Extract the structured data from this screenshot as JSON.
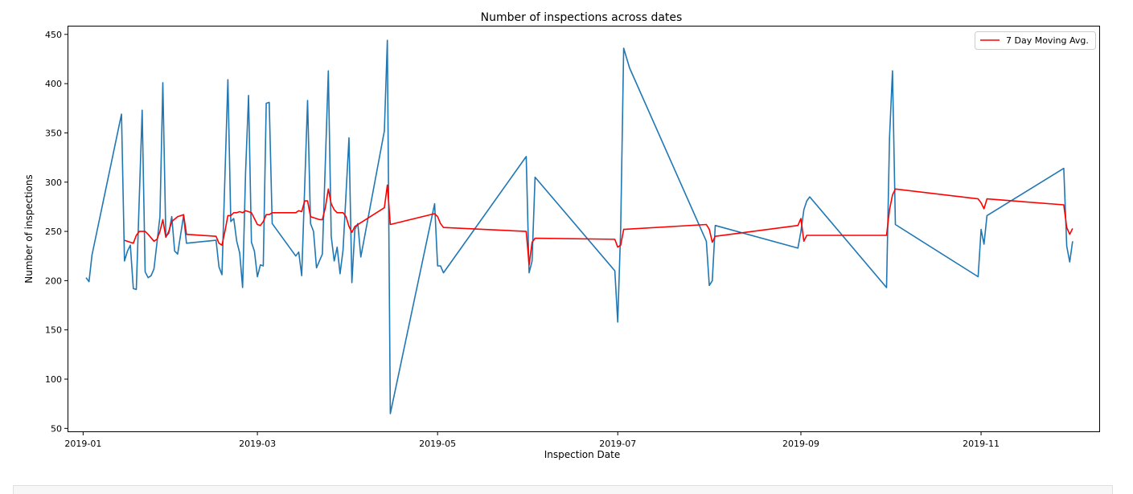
{
  "chart_data": {
    "type": "line",
    "title": "Number of inspections across dates",
    "xlabel": "Inspection Date",
    "ylabel": "Number of inspections",
    "xlim": [
      "2018-12-27",
      "2019-12-11"
    ],
    "ylim": [
      47,
      458
    ],
    "xticks": [
      "2019-01",
      "2019-03",
      "2019-05",
      "2019-07",
      "2019-09",
      "2019-11"
    ],
    "yticks": [
      50,
      100,
      150,
      200,
      250,
      300,
      350,
      400,
      450
    ],
    "legend_position": "top-right",
    "grid": false,
    "series": [
      {
        "color": "#1f77b4",
        "points": [
          [
            "2019-01-02",
            203
          ],
          [
            "2019-01-03",
            199
          ],
          [
            "2019-01-04",
            226
          ],
          [
            "2019-01-14",
            369
          ],
          [
            "2019-01-15",
            220
          ],
          [
            "2019-01-16",
            230
          ],
          [
            "2019-01-17",
            236
          ],
          [
            "2019-01-18",
            192
          ],
          [
            "2019-01-19",
            191
          ],
          [
            "2019-01-21",
            373
          ],
          [
            "2019-01-22",
            209
          ],
          [
            "2019-01-23",
            203
          ],
          [
            "2019-01-24",
            205
          ],
          [
            "2019-01-25",
            212
          ],
          [
            "2019-01-27",
            265
          ],
          [
            "2019-01-28",
            401
          ],
          [
            "2019-01-29",
            245
          ],
          [
            "2019-01-30",
            248
          ],
          [
            "2019-01-31",
            265
          ],
          [
            "2019-02-01",
            230
          ],
          [
            "2019-02-02",
            227
          ],
          [
            "2019-02-04",
            266
          ],
          [
            "2019-02-05",
            238
          ],
          [
            "2019-02-15",
            241
          ],
          [
            "2019-02-16",
            214
          ],
          [
            "2019-02-17",
            206
          ],
          [
            "2019-02-19",
            404
          ],
          [
            "2019-02-20",
            260
          ],
          [
            "2019-02-21",
            263
          ],
          [
            "2019-02-22",
            240
          ],
          [
            "2019-02-23",
            228
          ],
          [
            "2019-02-24",
            193
          ],
          [
            "2019-02-25",
            310
          ],
          [
            "2019-02-26",
            388
          ],
          [
            "2019-02-27",
            239
          ],
          [
            "2019-02-28",
            230
          ],
          [
            "2019-03-01",
            204
          ],
          [
            "2019-03-02",
            216
          ],
          [
            "2019-03-03",
            215
          ],
          [
            "2019-03-04",
            380
          ],
          [
            "2019-03-05",
            381
          ],
          [
            "2019-03-06",
            258
          ],
          [
            "2019-03-14",
            225
          ],
          [
            "2019-03-15",
            229
          ],
          [
            "2019-03-16",
            205
          ],
          [
            "2019-03-18",
            383
          ],
          [
            "2019-03-19",
            258
          ],
          [
            "2019-03-20",
            250
          ],
          [
            "2019-03-21",
            213
          ],
          [
            "2019-03-22",
            220
          ],
          [
            "2019-03-23",
            227
          ],
          [
            "2019-03-25",
            413
          ],
          [
            "2019-03-26",
            245
          ],
          [
            "2019-03-27",
            220
          ],
          [
            "2019-03-28",
            234
          ],
          [
            "2019-03-29",
            207
          ],
          [
            "2019-03-30",
            231
          ],
          [
            "2019-04-01",
            345
          ],
          [
            "2019-04-02",
            198
          ],
          [
            "2019-04-03",
            252
          ],
          [
            "2019-04-04",
            258
          ],
          [
            "2019-04-05",
            224
          ],
          [
            "2019-04-13",
            352
          ],
          [
            "2019-04-14",
            444
          ],
          [
            "2019-04-15",
            65
          ],
          [
            "2019-04-30",
            278
          ],
          [
            "2019-05-01",
            215
          ],
          [
            "2019-05-02",
            215
          ],
          [
            "2019-05-03",
            208
          ],
          [
            "2019-05-31",
            326
          ],
          [
            "2019-06-01",
            208
          ],
          [
            "2019-06-02",
            220
          ],
          [
            "2019-06-03",
            305
          ],
          [
            "2019-06-30",
            210
          ],
          [
            "2019-07-01",
            158
          ],
          [
            "2019-07-02",
            253
          ],
          [
            "2019-07-03",
            436
          ],
          [
            "2019-07-05",
            416
          ],
          [
            "2019-07-31",
            240
          ],
          [
            "2019-08-01",
            195
          ],
          [
            "2019-08-02",
            200
          ],
          [
            "2019-08-03",
            256
          ],
          [
            "2019-08-31",
            233
          ],
          [
            "2019-09-01",
            250
          ],
          [
            "2019-09-02",
            272
          ],
          [
            "2019-09-03",
            281
          ],
          [
            "2019-09-04",
            285
          ],
          [
            "2019-09-30",
            193
          ],
          [
            "2019-10-01",
            345
          ],
          [
            "2019-10-02",
            413
          ],
          [
            "2019-10-03",
            257
          ],
          [
            "2019-10-31",
            204
          ],
          [
            "2019-11-01",
            252
          ],
          [
            "2019-11-02",
            237
          ],
          [
            "2019-11-03",
            266
          ],
          [
            "2019-11-29",
            314
          ],
          [
            "2019-11-30",
            235
          ],
          [
            "2019-12-01",
            219
          ],
          [
            "2019-12-02",
            240
          ]
        ]
      },
      {
        "name": "7 Day Moving Avg.",
        "color": "#ff0000",
        "points": [
          [
            "2019-01-15",
            241
          ],
          [
            "2019-01-17",
            239
          ],
          [
            "2019-01-18",
            238
          ],
          [
            "2019-01-19",
            246
          ],
          [
            "2019-01-20",
            250
          ],
          [
            "2019-01-22",
            250
          ],
          [
            "2019-01-23",
            247
          ],
          [
            "2019-01-25",
            240
          ],
          [
            "2019-01-26",
            242
          ],
          [
            "2019-01-27",
            250
          ],
          [
            "2019-01-28",
            262
          ],
          [
            "2019-01-29",
            244
          ],
          [
            "2019-01-30",
            250
          ],
          [
            "2019-01-31",
            260
          ],
          [
            "2019-02-02",
            265
          ],
          [
            "2019-02-04",
            267
          ],
          [
            "2019-02-05",
            247
          ],
          [
            "2019-02-15",
            245
          ],
          [
            "2019-02-16",
            238
          ],
          [
            "2019-02-17",
            236
          ],
          [
            "2019-02-18",
            250
          ],
          [
            "2019-02-19",
            266
          ],
          [
            "2019-02-20",
            266
          ],
          [
            "2019-02-21",
            269
          ],
          [
            "2019-02-22",
            269
          ],
          [
            "2019-02-23",
            270
          ],
          [
            "2019-02-24",
            269
          ],
          [
            "2019-02-25",
            271
          ],
          [
            "2019-02-27",
            269
          ],
          [
            "2019-02-28",
            263
          ],
          [
            "2019-03-01",
            257
          ],
          [
            "2019-03-02",
            256
          ],
          [
            "2019-03-03",
            260
          ],
          [
            "2019-03-04",
            267
          ],
          [
            "2019-03-05",
            267
          ],
          [
            "2019-03-06",
            269
          ],
          [
            "2019-03-14",
            269
          ],
          [
            "2019-03-15",
            271
          ],
          [
            "2019-03-16",
            270
          ],
          [
            "2019-03-17",
            281
          ],
          [
            "2019-03-18",
            281
          ],
          [
            "2019-03-19",
            265
          ],
          [
            "2019-03-21",
            263
          ],
          [
            "2019-03-22",
            262
          ],
          [
            "2019-03-23",
            262
          ],
          [
            "2019-03-24",
            274
          ],
          [
            "2019-03-25",
            293
          ],
          [
            "2019-03-26",
            278
          ],
          [
            "2019-03-27",
            272
          ],
          [
            "2019-03-28",
            269
          ],
          [
            "2019-03-30",
            269
          ],
          [
            "2019-03-31",
            265
          ],
          [
            "2019-04-01",
            255
          ],
          [
            "2019-04-02",
            249
          ],
          [
            "2019-04-03",
            255
          ],
          [
            "2019-04-13",
            274
          ],
          [
            "2019-04-14",
            297
          ],
          [
            "2019-04-15",
            257
          ],
          [
            "2019-04-30",
            268
          ],
          [
            "2019-05-01",
            265
          ],
          [
            "2019-05-02",
            258
          ],
          [
            "2019-05-03",
            254
          ],
          [
            "2019-05-31",
            250
          ],
          [
            "2019-06-01",
            216
          ],
          [
            "2019-06-02",
            239
          ],
          [
            "2019-06-03",
            243
          ],
          [
            "2019-06-30",
            242
          ],
          [
            "2019-07-01",
            234
          ],
          [
            "2019-07-02",
            236
          ],
          [
            "2019-07-03",
            252
          ],
          [
            "2019-07-31",
            257
          ],
          [
            "2019-08-01",
            252
          ],
          [
            "2019-08-02",
            239
          ],
          [
            "2019-08-03",
            245
          ],
          [
            "2019-08-31",
            256
          ],
          [
            "2019-09-01",
            263
          ],
          [
            "2019-09-02",
            240
          ],
          [
            "2019-09-03",
            246
          ],
          [
            "2019-09-30",
            246
          ],
          [
            "2019-10-01",
            272
          ],
          [
            "2019-10-02",
            287
          ],
          [
            "2019-10-03",
            293
          ],
          [
            "2019-10-31",
            283
          ],
          [
            "2019-11-01",
            279
          ],
          [
            "2019-11-02",
            273
          ],
          [
            "2019-11-03",
            283
          ],
          [
            "2019-11-29",
            277
          ],
          [
            "2019-11-30",
            254
          ],
          [
            "2019-12-01",
            247
          ],
          [
            "2019-12-02",
            253
          ]
        ]
      }
    ]
  }
}
